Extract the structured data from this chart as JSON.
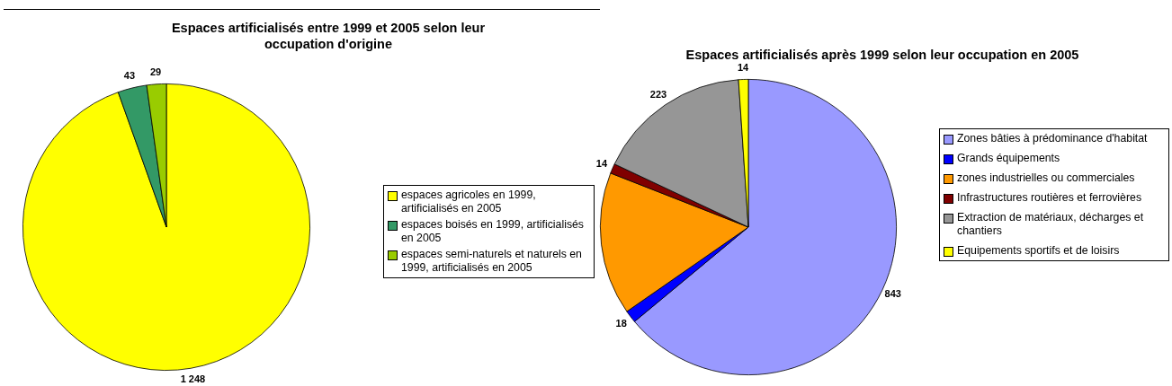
{
  "chart_data": [
    {
      "type": "pie",
      "title": "Espaces artificialisés entre 1999 et 2005 selon leur occupation d'origine",
      "categories": [
        "espaces agricoles en 1999, artificialisés en 2005",
        "espaces boisés en 1999, artificialisés en 2005",
        "espaces semi-naturels et naturels en 1999, artificialisés en 2005"
      ],
      "values": [
        1248,
        43,
        29
      ],
      "colors": [
        "#ffff00",
        "#339966",
        "#99cc00"
      ],
      "value_labels": [
        "1 248",
        "43",
        "29"
      ],
      "legend": "right"
    },
    {
      "type": "pie",
      "title": "Espaces artificialisés après 1999 selon leur occupation en 2005",
      "categories": [
        "Zones bâties à prédominance d'habitat",
        "Grands équipements",
        "zones industrielles ou commerciales",
        "Infrastructures routières et ferrovières",
        "Extraction de matériaux, décharges et chantiers",
        "Equipements sportifs et de loisirs"
      ],
      "values": [
        843,
        18,
        206,
        14,
        223,
        14
      ],
      "colors": [
        "#9999ff",
        "#0000ff",
        "#ff9900",
        "#800000",
        "#969696",
        "#ffff00"
      ],
      "value_labels": [
        "843",
        "18",
        null,
        "14",
        "223",
        "14"
      ],
      "legend": "right"
    }
  ]
}
